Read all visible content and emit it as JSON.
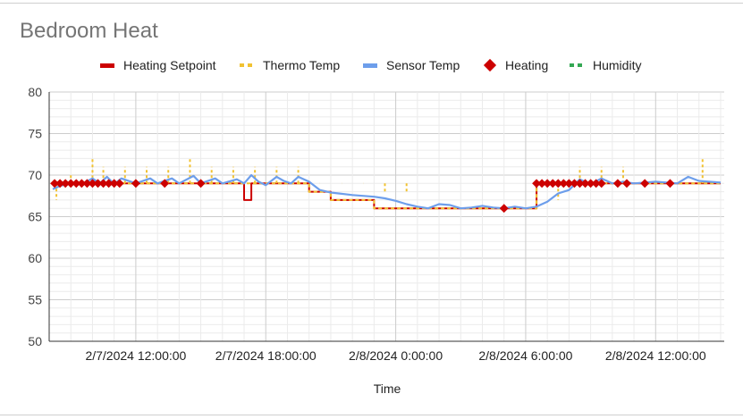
{
  "chart_data": {
    "type": "line",
    "title": "Bedroom Heat",
    "xlabel": "Time",
    "ylabel": "",
    "ylim": [
      50,
      80
    ],
    "yticks": [
      50,
      55,
      60,
      65,
      70,
      75,
      80
    ],
    "xlim": [
      "2024-02-07T08:00",
      "2024-02-08T15:10"
    ],
    "xticks": [
      {
        "t": "2024-02-07T12:00",
        "label": "2/7/2024 12:00:00"
      },
      {
        "t": "2024-02-07T18:00",
        "label": "2/7/2024 18:00:00"
      },
      {
        "t": "2024-02-08T00:00",
        "label": "2/8/2024 0:00:00"
      },
      {
        "t": "2024-02-08T06:00",
        "label": "2/8/2024 6:00:00"
      },
      {
        "t": "2024-02-08T12:00",
        "label": "2/8/2024 12:00:00"
      }
    ],
    "grid": true,
    "legend_position": "top",
    "colors": {
      "Heating Setpoint": "#cc0000",
      "Thermo Temp": "#f1c232",
      "Sensor Temp": "#6d9eeb",
      "Heating": "#cc0000",
      "Humidity": "#34a853",
      "grid_minor": "#ebebeb",
      "grid_major": "#cccccc",
      "axis": "#333333"
    },
    "series": [
      {
        "name": "Heating Setpoint",
        "kind": "line",
        "points": [
          [
            "2024-02-07T08:10",
            69
          ],
          [
            "2024-02-07T17:00",
            69
          ],
          [
            "2024-02-07T17:00",
            67
          ],
          [
            "2024-02-07T17:20",
            67
          ],
          [
            "2024-02-07T17:20",
            69
          ],
          [
            "2024-02-07T20:00",
            69
          ],
          [
            "2024-02-07T20:00",
            68
          ],
          [
            "2024-02-07T21:00",
            68
          ],
          [
            "2024-02-07T21:00",
            67
          ],
          [
            "2024-02-07T23:00",
            67
          ],
          [
            "2024-02-07T23:00",
            66
          ],
          [
            "2024-02-08T06:30",
            66
          ],
          [
            "2024-02-08T06:30",
            69
          ],
          [
            "2024-02-08T15:00",
            69
          ]
        ]
      },
      {
        "name": "Thermo Temp",
        "kind": "dashed-step",
        "points": [
          [
            "2024-02-07T08:10",
            69
          ],
          [
            "2024-02-07T20:00",
            69
          ],
          [
            "2024-02-07T20:00",
            68
          ],
          [
            "2024-02-07T21:00",
            68
          ],
          [
            "2024-02-07T21:00",
            67
          ],
          [
            "2024-02-07T23:00",
            67
          ],
          [
            "2024-02-07T23:00",
            66
          ],
          [
            "2024-02-08T06:30",
            66
          ],
          [
            "2024-02-08T06:30",
            69
          ],
          [
            "2024-02-08T15:00",
            69
          ]
        ],
        "spikes": [
          [
            "2024-02-07T08:20",
            67
          ],
          [
            "2024-02-07T09:00",
            70
          ],
          [
            "2024-02-07T10:00",
            72
          ],
          [
            "2024-02-07T10:30",
            71
          ],
          [
            "2024-02-07T11:30",
            71
          ],
          [
            "2024-02-07T12:30",
            71
          ],
          [
            "2024-02-07T13:30",
            71
          ],
          [
            "2024-02-07T14:30",
            72
          ],
          [
            "2024-02-07T15:30",
            71
          ],
          [
            "2024-02-07T16:30",
            71
          ],
          [
            "2024-02-07T17:30",
            71
          ],
          [
            "2024-02-07T18:30",
            71
          ],
          [
            "2024-02-07T19:30",
            71
          ],
          [
            "2024-02-07T20:30",
            69
          ],
          [
            "2024-02-07T21:30",
            69
          ],
          [
            "2024-02-07T22:30",
            69
          ],
          [
            "2024-02-07T23:30",
            68
          ],
          [
            "2024-02-08T00:30",
            68
          ],
          [
            "2024-02-08T07:30",
            67
          ],
          [
            "2024-02-08T08:30",
            71
          ],
          [
            "2024-02-08T09:30",
            71
          ],
          [
            "2024-02-08T10:30",
            71
          ],
          [
            "2024-02-08T14:10",
            72
          ]
        ]
      },
      {
        "name": "Sensor Temp",
        "kind": "line",
        "points": [
          [
            "2024-02-07T08:10",
            68.3
          ],
          [
            "2024-02-07T08:30",
            68.7
          ],
          [
            "2024-02-07T09:00",
            69.0
          ],
          [
            "2024-02-07T09:30",
            68.9
          ],
          [
            "2024-02-07T10:00",
            69.6
          ],
          [
            "2024-02-07T10:20",
            69.0
          ],
          [
            "2024-02-07T10:40",
            69.8
          ],
          [
            "2024-02-07T11:00",
            68.9
          ],
          [
            "2024-02-07T11:20",
            69.6
          ],
          [
            "2024-02-07T12:00",
            69.0
          ],
          [
            "2024-02-07T12:40",
            69.6
          ],
          [
            "2024-02-07T13:00",
            69.0
          ],
          [
            "2024-02-07T13:40",
            69.6
          ],
          [
            "2024-02-07T14:00",
            69.0
          ],
          [
            "2024-02-07T14:40",
            69.9
          ],
          [
            "2024-02-07T15:00",
            69.0
          ],
          [
            "2024-02-07T15:40",
            69.6
          ],
          [
            "2024-02-07T16:00",
            69.0
          ],
          [
            "2024-02-07T16:40",
            69.5
          ],
          [
            "2024-02-07T17:00",
            69.0
          ],
          [
            "2024-02-07T17:20",
            70.0
          ],
          [
            "2024-02-07T17:40",
            69.2
          ],
          [
            "2024-02-07T18:00",
            68.8
          ],
          [
            "2024-02-07T18:30",
            69.8
          ],
          [
            "2024-02-07T18:50",
            69.3
          ],
          [
            "2024-02-07T19:10",
            69.0
          ],
          [
            "2024-02-07T19:30",
            69.8
          ],
          [
            "2024-02-07T20:00",
            69.2
          ],
          [
            "2024-02-07T20:30",
            68.2
          ],
          [
            "2024-02-07T21:00",
            67.9
          ],
          [
            "2024-02-07T22:00",
            67.6
          ],
          [
            "2024-02-07T23:00",
            67.4
          ],
          [
            "2024-02-07T23:30",
            67.2
          ],
          [
            "2024-02-08T00:00",
            66.9
          ],
          [
            "2024-02-08T00:30",
            66.5
          ],
          [
            "2024-02-08T01:00",
            66.2
          ],
          [
            "2024-02-08T01:30",
            66.0
          ],
          [
            "2024-02-08T02:00",
            66.5
          ],
          [
            "2024-02-08T02:30",
            66.4
          ],
          [
            "2024-02-08T03:00",
            66.0
          ],
          [
            "2024-02-08T03:30",
            66.1
          ],
          [
            "2024-02-08T04:00",
            66.3
          ],
          [
            "2024-02-08T04:30",
            66.1
          ],
          [
            "2024-02-08T05:00",
            66.0
          ],
          [
            "2024-02-08T05:30",
            66.2
          ],
          [
            "2024-02-08T06:00",
            66.0
          ],
          [
            "2024-02-08T06:30",
            66.2
          ],
          [
            "2024-02-08T07:00",
            66.8
          ],
          [
            "2024-02-08T07:30",
            67.8
          ],
          [
            "2024-02-08T08:00",
            68.2
          ],
          [
            "2024-02-08T08:30",
            69.5
          ],
          [
            "2024-02-08T09:00",
            68.9
          ],
          [
            "2024-02-08T09:30",
            69.6
          ],
          [
            "2024-02-08T10:00",
            69.0
          ],
          [
            "2024-02-08T10:30",
            69.2
          ],
          [
            "2024-02-08T11:00",
            69.0
          ],
          [
            "2024-02-08T12:00",
            69.2
          ],
          [
            "2024-02-08T13:00",
            69.0
          ],
          [
            "2024-02-08T13:30",
            69.8
          ],
          [
            "2024-02-08T14:00",
            69.3
          ],
          [
            "2024-02-08T15:00",
            69.1
          ]
        ]
      },
      {
        "name": "Heating",
        "kind": "markers",
        "points": [
          [
            "2024-02-07T08:15",
            69
          ],
          [
            "2024-02-07T08:30",
            69
          ],
          [
            "2024-02-07T08:45",
            69
          ],
          [
            "2024-02-07T09:00",
            69
          ],
          [
            "2024-02-07T09:15",
            69
          ],
          [
            "2024-02-07T09:30",
            69
          ],
          [
            "2024-02-07T09:45",
            69
          ],
          [
            "2024-02-07T10:00",
            69
          ],
          [
            "2024-02-07T10:15",
            69
          ],
          [
            "2024-02-07T10:30",
            69
          ],
          [
            "2024-02-07T10:45",
            69
          ],
          [
            "2024-02-07T11:00",
            69
          ],
          [
            "2024-02-07T11:15",
            69
          ],
          [
            "2024-02-07T12:00",
            69
          ],
          [
            "2024-02-07T13:20",
            69
          ],
          [
            "2024-02-07T15:00",
            69
          ],
          [
            "2024-02-08T05:00",
            66
          ],
          [
            "2024-02-08T06:30",
            69
          ],
          [
            "2024-02-08T06:45",
            69
          ],
          [
            "2024-02-08T07:00",
            69
          ],
          [
            "2024-02-08T07:15",
            69
          ],
          [
            "2024-02-08T07:30",
            69
          ],
          [
            "2024-02-08T07:45",
            69
          ],
          [
            "2024-02-08T08:00",
            69
          ],
          [
            "2024-02-08T08:15",
            69
          ],
          [
            "2024-02-08T08:30",
            69
          ],
          [
            "2024-02-08T08:45",
            69
          ],
          [
            "2024-02-08T09:00",
            69
          ],
          [
            "2024-02-08T09:15",
            69
          ],
          [
            "2024-02-08T09:30",
            69
          ],
          [
            "2024-02-08T10:15",
            69
          ],
          [
            "2024-02-08T10:40",
            69
          ],
          [
            "2024-02-08T11:30",
            69
          ],
          [
            "2024-02-08T12:40",
            69
          ]
        ]
      },
      {
        "name": "Humidity",
        "kind": "dashed-line",
        "points": []
      }
    ]
  }
}
